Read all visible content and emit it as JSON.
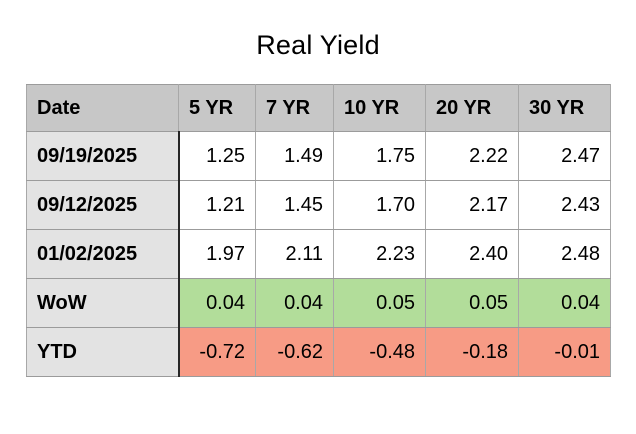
{
  "chart_data": {
    "type": "table",
    "title": "Real Yield",
    "columns": [
      "Date",
      "5 YR",
      "7 YR",
      "10 YR",
      "20 YR",
      "30 YR"
    ],
    "rows": [
      {
        "label": "09/19/2025",
        "values": [
          "1.25",
          "1.49",
          "1.75",
          "2.22",
          "2.47"
        ],
        "highlight": "none"
      },
      {
        "label": "09/12/2025",
        "values": [
          "1.21",
          "1.45",
          "1.70",
          "2.17",
          "2.43"
        ],
        "highlight": "none"
      },
      {
        "label": "01/02/2025",
        "values": [
          "1.97",
          "2.11",
          "2.23",
          "2.40",
          "2.48"
        ],
        "highlight": "none"
      },
      {
        "label": "WoW",
        "values": [
          "0.04",
          "0.04",
          "0.05",
          "0.05",
          "0.04"
        ],
        "highlight": "positive"
      },
      {
        "label": "YTD",
        "values": [
          "-0.72",
          "-0.62",
          "-0.48",
          "-0.18",
          "-0.01"
        ],
        "highlight": "negative"
      }
    ]
  },
  "colors": {
    "header_bg": "#c7c7c7",
    "label_bg": "#e3e3e3",
    "positive_bg": "#b2dd9a",
    "negative_bg": "#f79b85",
    "grid": "#9b9b9b"
  }
}
